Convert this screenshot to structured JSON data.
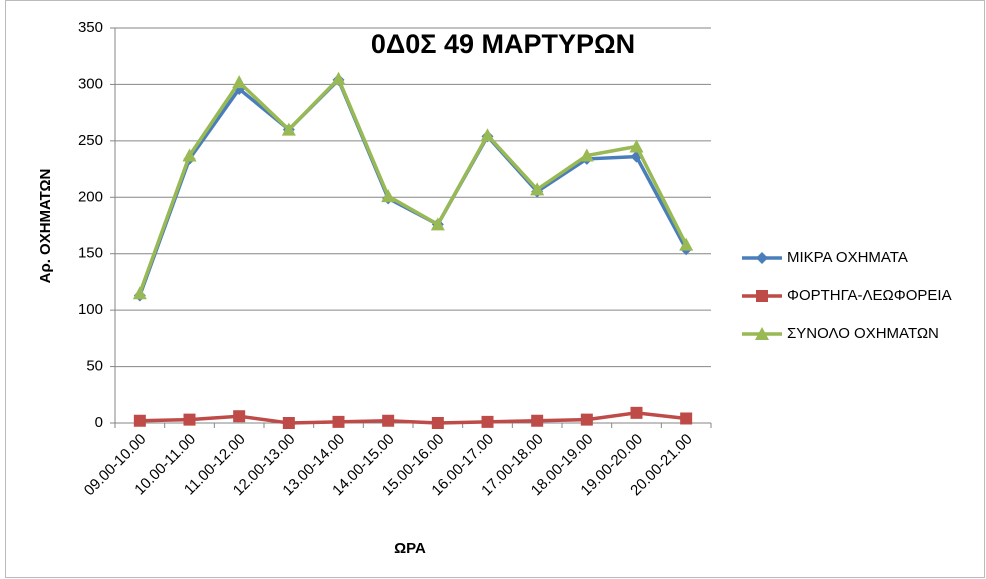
{
  "chart_data": {
    "type": "line",
    "title": "0Δ0Σ 49 ΜΑΡΤΥΡΩΝ",
    "x_label": "ΩΡΑ",
    "y_label": "Αρ. ΟΧΗΜΑΤΩΝ",
    "categories": [
      "09.00-10.00",
      "10.00-11.00",
      "11.00-12.00",
      "12.00-13.00",
      "13.00-14.00",
      "14.00-15.00",
      "15.00-16.00",
      "16.00-17.00",
      "17.00-18.00",
      "18.00-19.00",
      "19.00-20.00",
      "20.00-21.00"
    ],
    "series": [
      {
        "name": "ΜΙΚΡΑ ΟΧΗΜΑΤΑ",
        "color": "#4a7ebb",
        "marker": "diamond",
        "values": [
          113,
          234,
          296,
          260,
          304,
          199,
          176,
          254,
          205,
          234,
          236,
          154
        ]
      },
      {
        "name": "ΦΟΡΤΗΓΑ-ΛΕΩΦΟΡΕΙΑ",
        "color": "#be4b48",
        "marker": "square",
        "values": [
          2,
          3,
          6,
          0,
          1,
          2,
          0,
          1,
          2,
          3,
          9,
          4
        ]
      },
      {
        "name": "ΣΥΝΟΛΟ ΟΧΗΜΑΤΩΝ",
        "color": "#98b954",
        "marker": "triangle",
        "values": [
          115,
          237,
          302,
          260,
          305,
          201,
          176,
          255,
          207,
          237,
          245,
          158
        ]
      }
    ],
    "ylim": [
      0,
      350
    ],
    "yticks": [
      0,
      50,
      100,
      150,
      200,
      250,
      300,
      350
    ],
    "grid": true,
    "legend": "right"
  }
}
